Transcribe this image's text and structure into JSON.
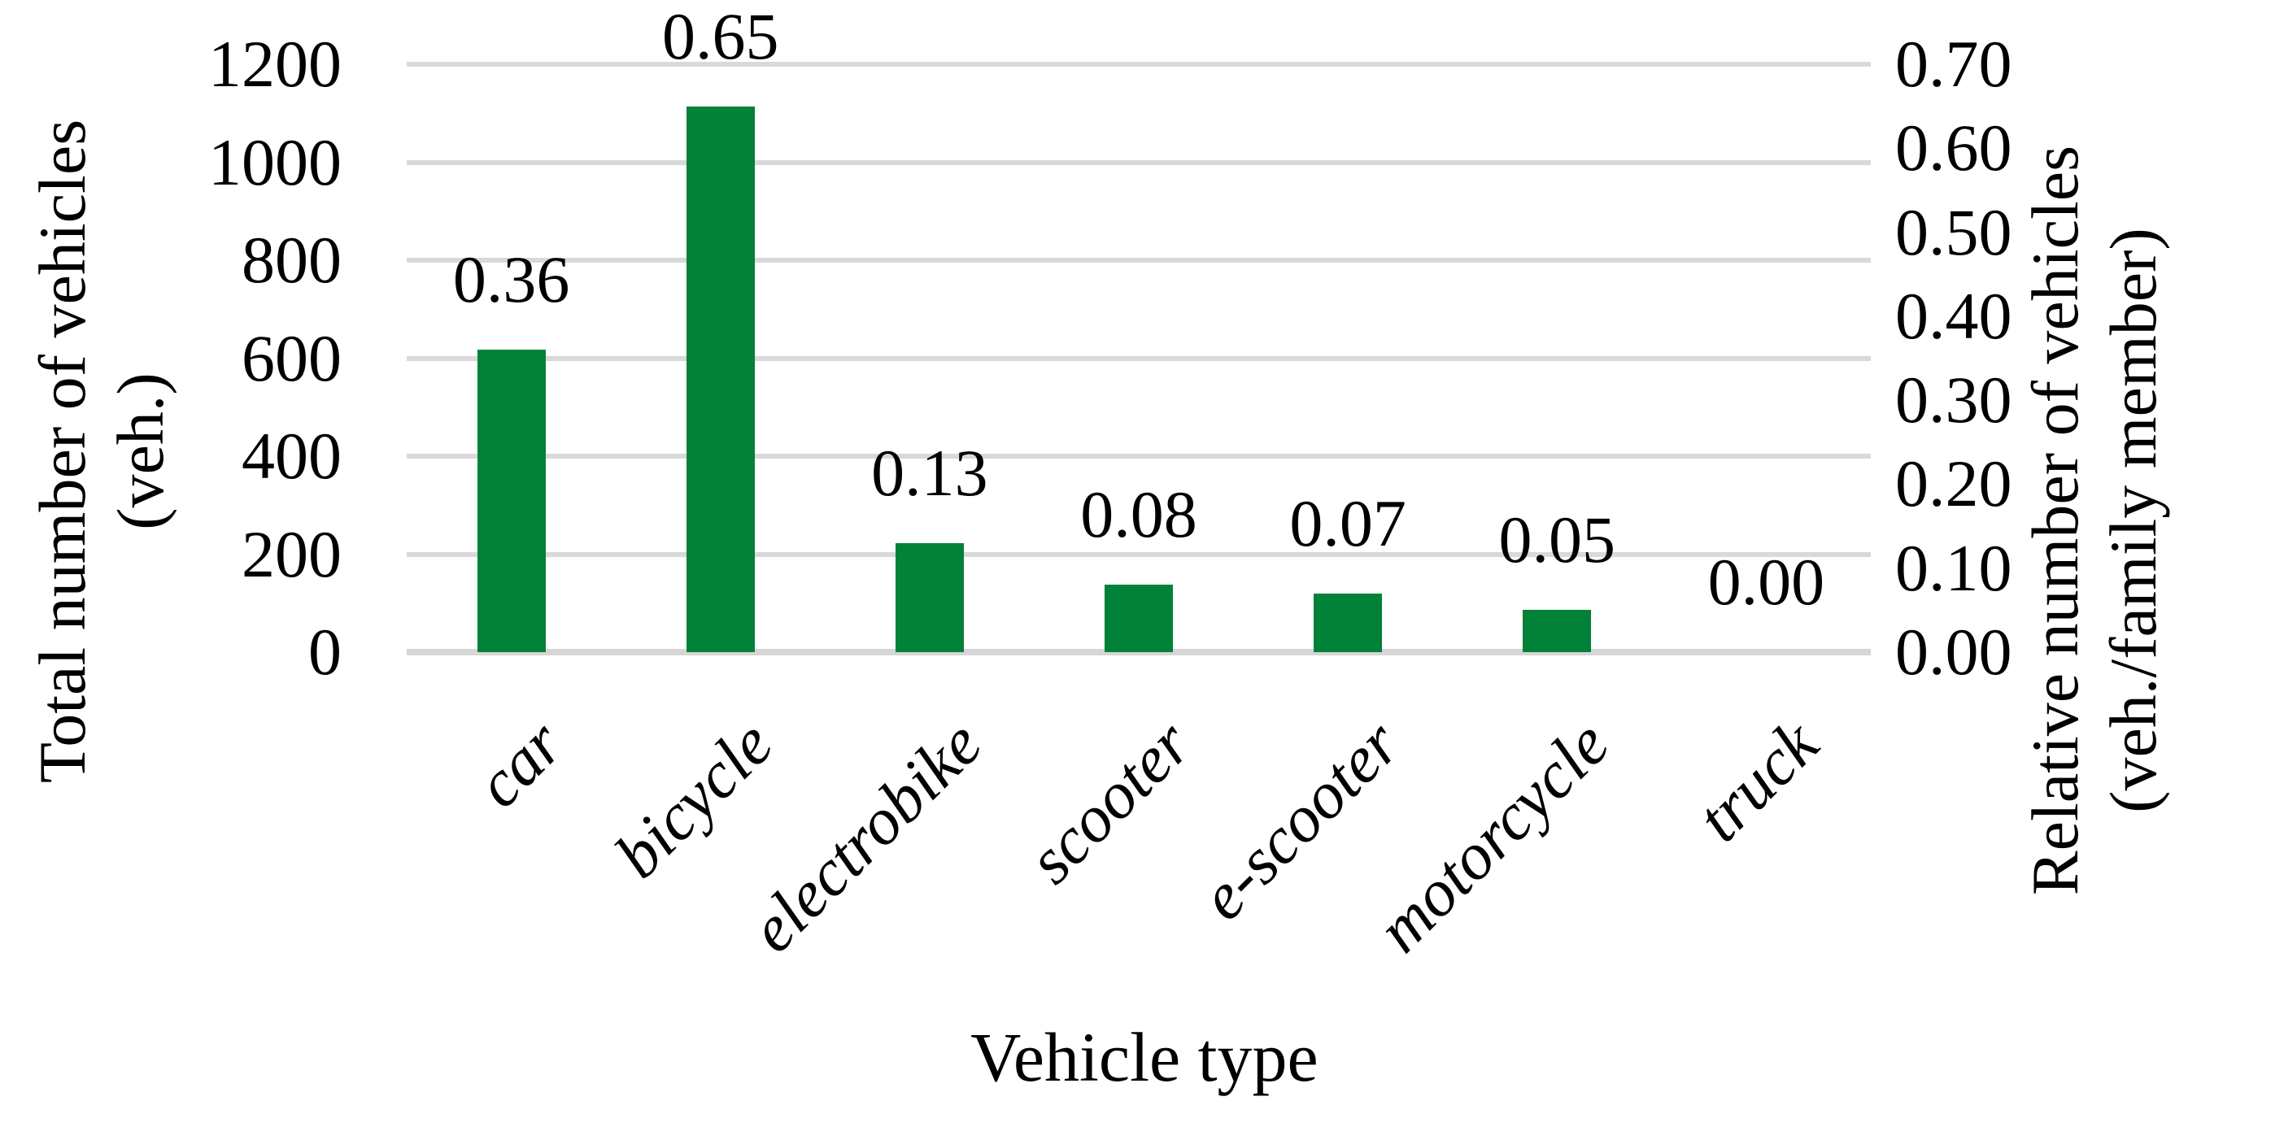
{
  "figure": {
    "background": "#FFFFFF",
    "bar_color": "#028138",
    "gridline_color": "#D9D9D9",
    "baseline_color": "#D6D6D6",
    "text_color": "#000000"
  },
  "left_axis": {
    "title_line1": "Total number of vehicles",
    "title_line2": "(veh.)",
    "ticks": [
      "1200",
      "1000",
      "800",
      "600",
      "400",
      "200",
      "0"
    ],
    "min": 0,
    "max": 1200,
    "step": 200
  },
  "right_axis": {
    "title_line1": "Relative number of vehicles",
    "title_line2": "(veh./family member)",
    "ticks": [
      "0.70",
      "0.60",
      "0.50",
      "0.40",
      "0.30",
      "0.20",
      "0.10",
      "0.00"
    ],
    "min": 0,
    "max": 0.7,
    "step": 0.1
  },
  "x_axis": {
    "title": "Vehicle type"
  },
  "chart_data": {
    "type": "bar",
    "title": "",
    "xlabel": "Vehicle type",
    "ylabel_left": "Total number of vehicles (veh.)",
    "ylabel_right": "Relative number of vehicles (veh./family member)",
    "grid": "horizontal",
    "legend": "none",
    "categories": [
      "car",
      "bicycle",
      "electrobike",
      "scooter",
      "e-scooter",
      "motorcycle",
      "truck"
    ],
    "series": [
      {
        "name": "Relative number of vehicles (veh./family member)",
        "axis": "right",
        "values": [
          0.36,
          0.65,
          0.13,
          0.08,
          0.07,
          0.05,
          0.0
        ],
        "data_labels": [
          "0.36",
          "0.65",
          "0.13",
          "0.08",
          "0.07",
          "0.05",
          "0.00"
        ]
      },
      {
        "name": "Total number of vehicles (veh.)",
        "axis": "left",
        "values_estimated_from_bars": [
          617,
          1114,
          223,
          137,
          120,
          86,
          0
        ]
      }
    ],
    "left_axis_range": [
      0,
      1200
    ],
    "right_axis_range": [
      0,
      0.7
    ]
  }
}
